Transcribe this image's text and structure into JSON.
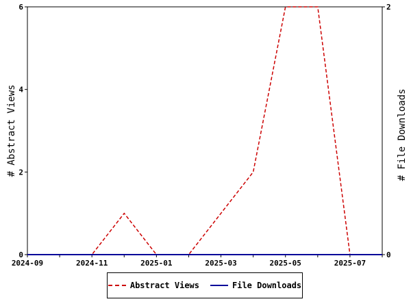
{
  "chart_data": {
    "type": "line",
    "x_dates": [
      "2024-09",
      "2024-10",
      "2024-11",
      "2024-12",
      "2025-01",
      "2025-02",
      "2025-03",
      "2025-04",
      "2025-05",
      "2025-06",
      "2025-07",
      "2025-08"
    ],
    "x_tick_labels": [
      "2024-09",
      "2024-11",
      "2025-01",
      "2025-03",
      "2025-05",
      "2025-07"
    ],
    "series": [
      {
        "name": "Abstract Views",
        "axis": "left",
        "color": "#cc0000",
        "style": "dashed",
        "values": [
          0,
          0,
          0,
          1,
          0,
          0,
          1,
          2,
          6,
          6,
          0,
          0
        ]
      },
      {
        "name": "File Downloads",
        "axis": "right",
        "color": "#000099",
        "style": "solid",
        "values": [
          0,
          0,
          0,
          0,
          0,
          0,
          0,
          0,
          0,
          0,
          0,
          0
        ]
      }
    ],
    "y_left": {
      "label": "# Abstract Views",
      "range": [
        0,
        6
      ],
      "ticks": [
        "0",
        "2",
        "4",
        "6"
      ]
    },
    "y_right": {
      "label": "# File Downloads",
      "range": [
        0,
        2
      ],
      "ticks": [
        "0",
        "2"
      ]
    },
    "grid": false,
    "legend_placement": "bottom-center"
  }
}
